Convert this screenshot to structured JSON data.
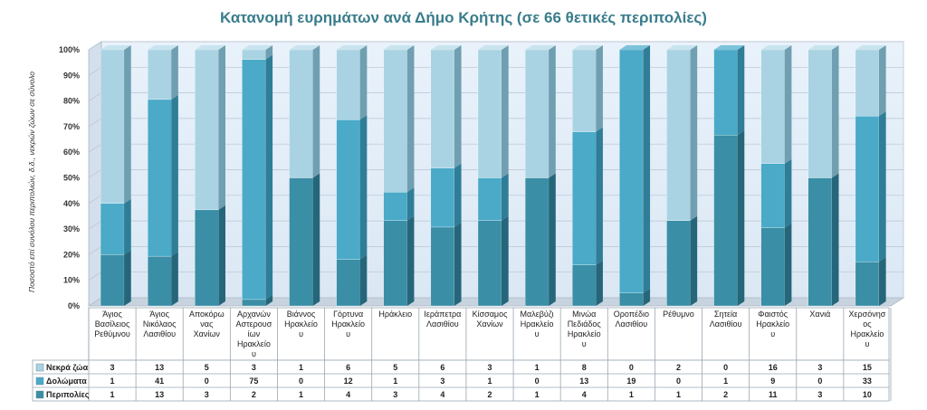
{
  "chart_data": {
    "type": "bar",
    "stacked": "percent",
    "title": "Κατανομή ευρημάτων ανά Δήμο Κρήτης (σε 66 θετικές περιπολίες)",
    "ylabel": "Ποσοστό επί συνόλου περιπολιών, δ.δ., νεκρών ζώων σε σύνολο",
    "ylim": [
      0,
      100
    ],
    "yticks": [
      "0%",
      "10%",
      "20%",
      "30%",
      "40%",
      "50%",
      "60%",
      "70%",
      "80%",
      "90%",
      "100%"
    ],
    "grid": true,
    "legend": "table-bottom",
    "categories": [
      [
        "Άγιος",
        "Βασίλειος",
        "Ρεθύμνου"
      ],
      [
        "Άγιος",
        "Νικόλαος",
        "Λασιθίου"
      ],
      [
        "Αποκόρω",
        "νας",
        "Χανίων"
      ],
      [
        "Αρχανών",
        "Αστερουσ",
        "ίων",
        "Ηρακλείο",
        "υ"
      ],
      [
        "Βιάννος",
        "Ηρακλείο",
        "υ"
      ],
      [
        "Γόρτυνα",
        "Ηρακλείο",
        "υ"
      ],
      [
        "Ηράκλειο"
      ],
      [
        "Ιεράπετρα",
        "Λασιθίου"
      ],
      [
        "Κίσσαμος",
        "Χανίων"
      ],
      [
        "Μαλεβύζι",
        "Ηρακλείο",
        "υ"
      ],
      [
        "Μινώα",
        "Πεδιάδος",
        "Ηρακλείο",
        "υ"
      ],
      [
        "Οροπέδιο",
        "Λασιθίου"
      ],
      [
        "Ρέθυμνο"
      ],
      [
        "Σητεία",
        "Λασιθίου"
      ],
      [
        "Φαιστός",
        "Ηρακλείο",
        "υ"
      ],
      [
        "Χανιά"
      ],
      [
        "Χερσόνησ",
        "ος",
        "Ηρακλείο",
        "υ"
      ]
    ],
    "series": [
      {
        "name": "Νεκρά ζώα",
        "color": "#a9d3e3",
        "side": "#6f9fb0",
        "top": "#c9e4ee",
        "values": [
          3,
          13,
          5,
          3,
          1,
          6,
          5,
          6,
          3,
          1,
          8,
          0,
          2,
          0,
          16,
          3,
          15
        ]
      },
      {
        "name": "Δολώματα",
        "color": "#4aaac8",
        "side": "#2f7d97",
        "top": "#7cc3da",
        "values": [
          1,
          41,
          0,
          75,
          0,
          12,
          1,
          3,
          1,
          0,
          13,
          19,
          0,
          1,
          9,
          0,
          33
        ]
      },
      {
        "name": "Περιπολίες",
        "color": "#3a8ea5",
        "side": "#25667a",
        "top": "#5ea8bd",
        "values": [
          1,
          13,
          3,
          2,
          1,
          4,
          3,
          4,
          2,
          1,
          4,
          1,
          1,
          2,
          11,
          3,
          10
        ]
      }
    ]
  }
}
